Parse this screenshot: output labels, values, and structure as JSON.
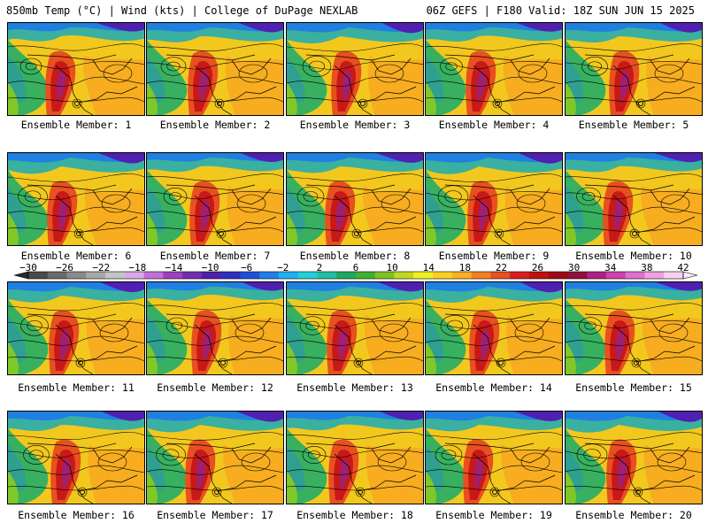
{
  "header": {
    "left": "850mb Temp (°C) | Wind (kts) | College of DuPage NEXLAB",
    "right": "06Z GEFS | F180 Valid: 18Z SUN JUN 15 2025"
  },
  "panels": [
    {
      "label": "Ensemble Member: 1"
    },
    {
      "label": "Ensemble Member: 2"
    },
    {
      "label": "Ensemble Member: 3"
    },
    {
      "label": "Ensemble Member: 4"
    },
    {
      "label": "Ensemble Member: 5"
    },
    {
      "label": "Ensemble Member: 6"
    },
    {
      "label": "Ensemble Member: 7"
    },
    {
      "label": "Ensemble Member: 8"
    },
    {
      "label": "Ensemble Member: 9"
    },
    {
      "label": "Ensemble Member: 10"
    },
    {
      "label": "Ensemble Member: 11"
    },
    {
      "label": "Ensemble Member: 12"
    },
    {
      "label": "Ensemble Member: 13"
    },
    {
      "label": "Ensemble Member: 14"
    },
    {
      "label": "Ensemble Member: 15"
    },
    {
      "label": "Ensemble Member: 16"
    },
    {
      "label": "Ensemble Member: 17"
    },
    {
      "label": "Ensemble Member: 18"
    },
    {
      "label": "Ensemble Member: 19"
    },
    {
      "label": "Ensemble Member: 20"
    }
  ],
  "colorbar": {
    "ticks": [
      "−30",
      "−26",
      "−22",
      "−18",
      "−14",
      "−10",
      "−6",
      "−2",
      "2",
      "6",
      "10",
      "14",
      "18",
      "22",
      "26",
      "30",
      "34",
      "38",
      "42"
    ],
    "colors": [
      "#4a4a4a",
      "#6a6a6a",
      "#8a8a8a",
      "#a8a8a8",
      "#c4c4c4",
      "#d8a8e8",
      "#c070d8",
      "#a040c0",
      "#7030b0",
      "#5020a8",
      "#3030c0",
      "#2050d8",
      "#2080e8",
      "#20b0f0",
      "#20d0d8",
      "#20c0a0",
      "#20a860",
      "#40b030",
      "#80c020",
      "#c0d820",
      "#f0f020",
      "#f8d020",
      "#f8b020",
      "#f08020",
      "#e85020",
      "#d82020",
      "#c01010",
      "#a00818",
      "#901040",
      "#b02080",
      "#d040b0",
      "#e070d0",
      "#f0a0e0",
      "#f8d0f0"
    ]
  }
}
